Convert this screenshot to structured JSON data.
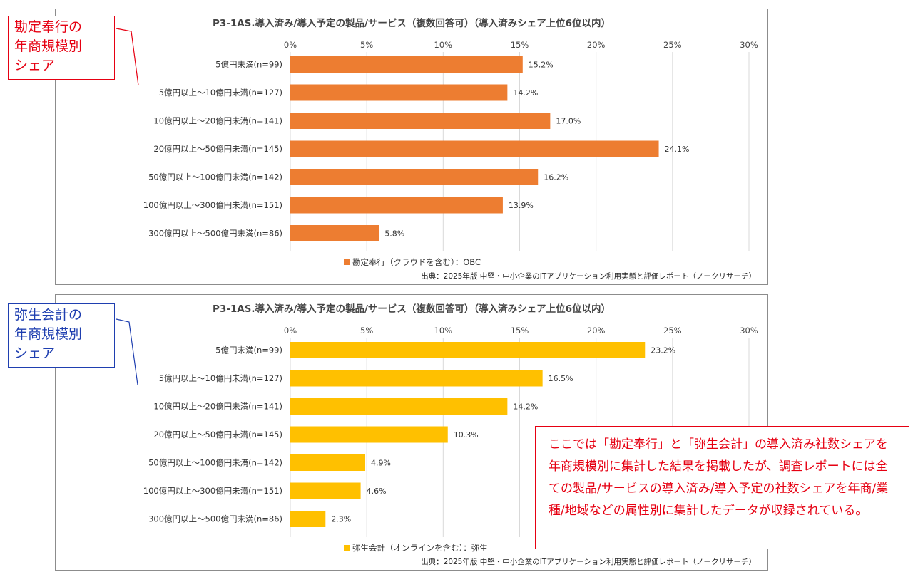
{
  "callouts": {
    "top": "勘定奉行の\n年商規模別\nシェア",
    "bottom": "弥生会計の\n年商規模別\nシェア"
  },
  "note": "ここでは「勘定奉行」と「弥生会計」の導入済み社数シェアを年商規模別に集計した結果を掲載したが、調査レポートには全ての製品/サービスの導入済み/導入予定の社数シェアを年商/業種/地域などの属性別に集計したデータが収録されている。",
  "colors": {
    "orange": "#ED7D31",
    "yellow": "#FFC000",
    "grid": "#d9d9d9"
  },
  "chart_data": [
    {
      "type": "bar",
      "orientation": "horizontal",
      "title": "P3-1AS.導入済み/導入予定の製品/サービス（複数回答可）（導入済みシェア上位6位以内）",
      "categories": [
        "5億円未満(n=99)",
        "5億円以上～10億円未満(n=127)",
        "10億円以上～20億円未満(n=141)",
        "20億円以上～50億円未満(n=145)",
        "50億円以上～100億円未満(n=142)",
        "100億円以上～300億円未満(n=151)",
        "300億円以上～500億円未満(n=86)"
      ],
      "series": [
        {
          "name": "勘定奉行（クラウドを含む）：OBC",
          "values": [
            15.2,
            14.2,
            17.0,
            24.1,
            16.2,
            13.9,
            5.8
          ]
        }
      ],
      "value_labels": [
        "15.2%",
        "14.2%",
        "17.0%",
        "24.1%",
        "16.2%",
        "13.9%",
        "5.8%"
      ],
      "xticks": [
        "0%",
        "5%",
        "10%",
        "15%",
        "20%",
        "25%",
        "30%"
      ],
      "xlim": [
        0,
        30
      ],
      "legend": "bottom",
      "source": "出典：2025年版 中堅・中小企業のITアプリケーション利用実態と評価レポート（ノークリサーチ）"
    },
    {
      "type": "bar",
      "orientation": "horizontal",
      "title": "P3-1AS.導入済み/導入予定の製品/サービス（複数回答可）（導入済みシェア上位6位以内）",
      "categories": [
        "5億円未満(n=99)",
        "5億円以上～10億円未満(n=127)",
        "10億円以上～20億円未満(n=141)",
        "20億円以上～50億円未満(n=145)",
        "50億円以上～100億円未満(n=142)",
        "100億円以上～300億円未満(n=151)",
        "300億円以上～500億円未満(n=86)"
      ],
      "series": [
        {
          "name": "弥生会計（オンラインを含む）：弥生",
          "values": [
            23.2,
            16.5,
            14.2,
            10.3,
            4.9,
            4.6,
            2.3
          ]
        }
      ],
      "value_labels": [
        "23.2%",
        "16.5%",
        "14.2%",
        "10.3%",
        "4.9%",
        "4.6%",
        "2.3%"
      ],
      "xticks": [
        "0%",
        "5%",
        "10%",
        "15%",
        "20%",
        "25%",
        "30%"
      ],
      "xlim": [
        0,
        30
      ],
      "legend": "bottom",
      "source": "出典：2025年版 中堅・中小企業のITアプリケーション利用実態と評価レポート（ノークリサーチ）"
    }
  ]
}
